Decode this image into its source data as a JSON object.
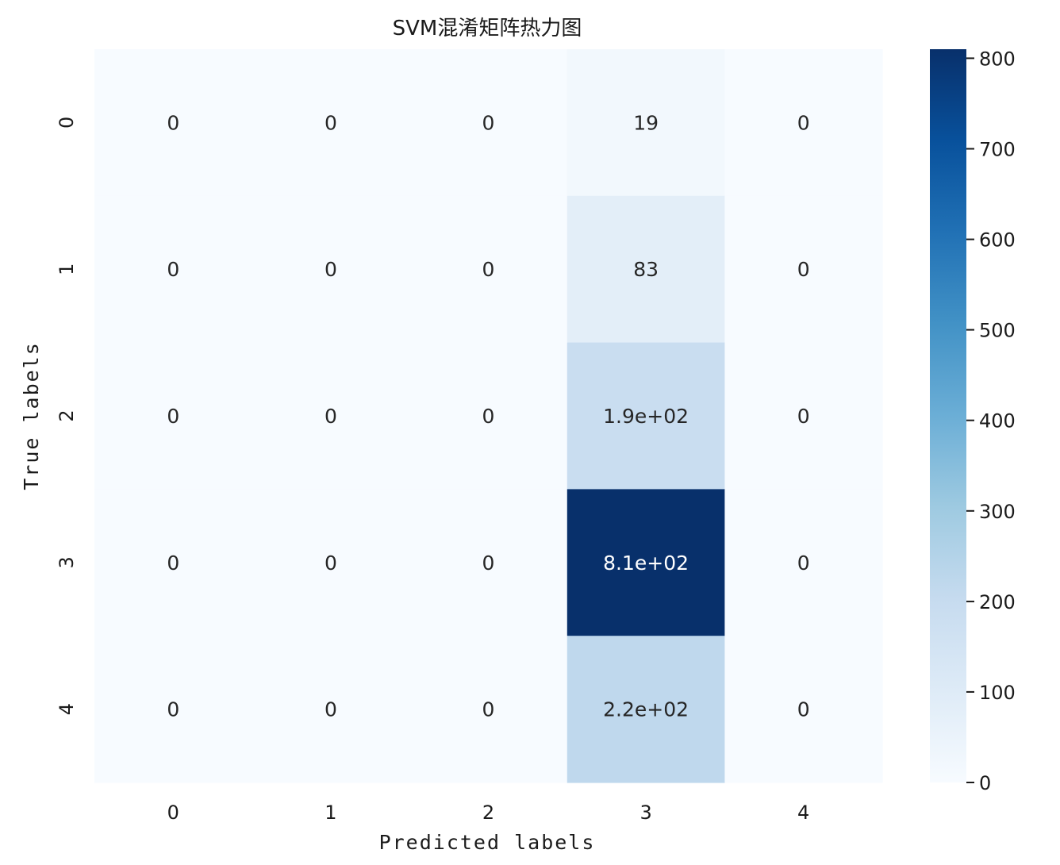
{
  "chart_data": {
    "type": "heatmap",
    "title": "SVM混淆矩阵热力图",
    "xlabel": "Predicted labels",
    "ylabel": "True labels",
    "x_categories": [
      "0",
      "1",
      "2",
      "3",
      "4"
    ],
    "y_categories": [
      "0",
      "1",
      "2",
      "3",
      "4"
    ],
    "values": [
      [
        0,
        0,
        0,
        19,
        0
      ],
      [
        0,
        0,
        0,
        83,
        0
      ],
      [
        0,
        0,
        0,
        190,
        0
      ],
      [
        0,
        0,
        0,
        810,
        0
      ],
      [
        0,
        0,
        0,
        220,
        0
      ]
    ],
    "annotations": [
      [
        "0",
        "0",
        "0",
        "19",
        "0"
      ],
      [
        "0",
        "0",
        "0",
        "83",
        "0"
      ],
      [
        "0",
        "0",
        "0",
        "1.9e+02",
        "0"
      ],
      [
        "0",
        "0",
        "0",
        "8.1e+02",
        "0"
      ],
      [
        "0",
        "0",
        "0",
        "2.2e+02",
        "0"
      ]
    ],
    "colormap": "Blues",
    "color_range": [
      0,
      810
    ],
    "colorbar_ticks": [
      0,
      100,
      200,
      300,
      400,
      500,
      600,
      700,
      800
    ],
    "colorbar_tick_labels": [
      "0",
      "100",
      "200",
      "300",
      "400",
      "500",
      "600",
      "700",
      "800"
    ],
    "colorbar_placement": "right",
    "grid": false
  }
}
